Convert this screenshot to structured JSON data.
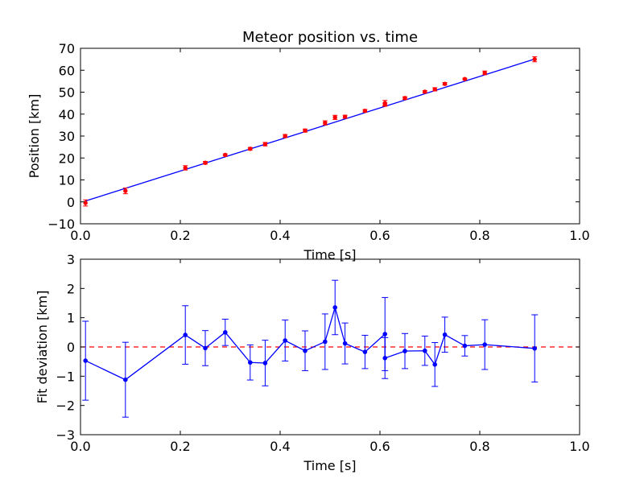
{
  "chart_data": [
    {
      "type": "scatter",
      "title": "Meteor position vs. time",
      "xlabel": "Time [s]",
      "ylabel": "Position [km]",
      "xlim": [
        0.0,
        1.0
      ],
      "ylim": [
        -10,
        70
      ],
      "xticks": [
        "0.0",
        "0.2",
        "0.4",
        "0.6",
        "0.8",
        "1.0"
      ],
      "yticks": [
        "−10",
        "0",
        "10",
        "20",
        "30",
        "40",
        "50",
        "60",
        "70"
      ],
      "grid": false,
      "series": [
        {
          "style": "red points with error bars",
          "color": "#ff0000",
          "x": [
            0.01,
            0.09,
            0.21,
            0.25,
            0.29,
            0.34,
            0.37,
            0.41,
            0.45,
            0.49,
            0.51,
            0.53,
            0.57,
            0.61,
            0.61,
            0.65,
            0.69,
            0.71,
            0.73,
            0.77,
            0.81,
            0.91
          ],
          "y": [
            -0.5,
            5.0,
            15.5,
            17.8,
            21.4,
            24.2,
            26.3,
            30.0,
            32.5,
            36.0,
            38.5,
            38.8,
            41.5,
            45.0,
            44.3,
            47.3,
            50.2,
            51.3,
            53.8,
            56.0,
            58.8,
            65.0
          ],
          "yerr": [
            1.4,
            1.3,
            1.0,
            0.6,
            0.45,
            0.6,
            0.8,
            0.7,
            0.7,
            0.95,
            0.95,
            0.7,
            0.6,
            1.25,
            0.7,
            0.6,
            0.5,
            0.75,
            0.6,
            0.35,
            0.85,
            1.15
          ]
        },
        {
          "style": "fit line",
          "color": "#0000ff",
          "x": [
            0.01,
            0.91
          ],
          "y": [
            0.4,
            65.1
          ]
        }
      ]
    },
    {
      "type": "line",
      "title": "",
      "xlabel": "Time [s]",
      "ylabel": "Fit deviation [km]",
      "xlim": [
        0.0,
        1.0
      ],
      "ylim": [
        -3,
        3
      ],
      "xticks": [
        "0.0",
        "0.2",
        "0.4",
        "0.6",
        "0.8",
        "1.0"
      ],
      "yticks": [
        "−3",
        "−2",
        "−1",
        "0",
        "1",
        "2",
        "3"
      ],
      "grid": false,
      "reference_line": {
        "y": 0,
        "color": "#ff0000",
        "style": "dashed"
      },
      "series": [
        {
          "style": "blue line with point markers and error bars",
          "color": "#0000ff",
          "x": [
            0.01,
            0.09,
            0.21,
            0.25,
            0.29,
            0.34,
            0.37,
            0.41,
            0.45,
            0.49,
            0.51,
            0.53,
            0.57,
            0.61,
            0.61,
            0.65,
            0.69,
            0.71,
            0.73,
            0.77,
            0.81,
            0.91
          ],
          "y": [
            -0.47,
            -1.12,
            0.41,
            -0.04,
            0.5,
            -0.53,
            -0.55,
            0.22,
            -0.13,
            0.18,
            1.35,
            0.12,
            -0.17,
            0.44,
            -0.38,
            -0.14,
            -0.13,
            -0.6,
            0.42,
            0.04,
            0.08,
            -0.05
          ],
          "yerr": [
            1.35,
            1.28,
            1.0,
            0.6,
            0.45,
            0.6,
            0.78,
            0.7,
            0.68,
            0.95,
            0.93,
            0.7,
            0.57,
            1.25,
            0.7,
            0.6,
            0.5,
            0.75,
            0.6,
            0.35,
            0.85,
            1.15
          ]
        }
      ]
    }
  ]
}
